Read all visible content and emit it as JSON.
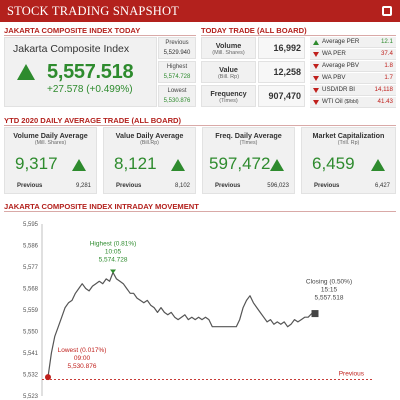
{
  "header": {
    "title": "STOCK TRADING SNAPSHOT"
  },
  "sections": {
    "jci_today": "JAKARTA COMPOSITE INDEX TODAY",
    "trade_today": "TODAY TRADE (ALL BOARD)",
    "ytd": "YTD 2020 DAILY AVERAGE TRADE (ALL BOARD)",
    "intraday": "JAKARTA COMPOSITE INDEX INTRADAY MOVEMENT"
  },
  "jci": {
    "name": "Jakarta Composite Index",
    "value": "5,557.518",
    "change": "+27.578 (+0.499%)",
    "previous_label": "Previous",
    "previous_value": "5,529.940",
    "highest_label": "Highest",
    "highest_value": "5,574.728",
    "lowest_label": "Lowest",
    "lowest_value": "5,530.876"
  },
  "trade": [
    {
      "label": "Volume",
      "sub": "(Mill. Shares)",
      "value": "16,992"
    },
    {
      "label": "Value",
      "sub": "(Bill. Rp)",
      "value": "12,258"
    },
    {
      "label": "Frequency",
      "sub": "(Times)",
      "value": "907,470"
    }
  ],
  "ratios": [
    {
      "label": "Average PER",
      "value": "12.1",
      "direction": "up"
    },
    {
      "label": "WA PER",
      "value": "37.4",
      "direction": "down"
    },
    {
      "label": "Average PBV",
      "value": "1.8",
      "direction": "down"
    },
    {
      "label": "WA PBV",
      "value": "1.7",
      "direction": "down"
    },
    {
      "label": "USD/IDR BI",
      "value": "14,118",
      "direction": "down"
    },
    {
      "label": "WTI Oil",
      "label_sub": "($/bbl)",
      "value": "41.43",
      "direction": "down"
    }
  ],
  "ytd": [
    {
      "title": "Volume Daily Average",
      "sub": "(Mill. Shares)",
      "value": "9,317",
      "prev_label": "Previous",
      "prev_value": "9,281"
    },
    {
      "title": "Value Daily Average",
      "sub": "(Bill.Rp)",
      "value": "8,121",
      "prev_label": "Previous",
      "prev_value": "8,102"
    },
    {
      "title": "Freq. Daily Average",
      "sub": "(Times)",
      "value": "597,472",
      "prev_label": "Previous",
      "prev_value": "596,023"
    },
    {
      "title": "Market Capitalization",
      "sub": "(Trill. Rp)",
      "value": "6,459",
      "prev_label": "Previous",
      "prev_value": "6,427"
    }
  ],
  "colors": {
    "brand": "#b3211d",
    "up": "#2e8b2e",
    "down": "#c0201c",
    "line": "#555555"
  },
  "chart_data": {
    "type": "line",
    "title": "JAKARTA COMPOSITE INDEX INTRADAY MOVEMENT",
    "xlabel": "",
    "ylabel": "",
    "ylim": [
      5523,
      5595
    ],
    "yticks": [
      "5,595",
      "5,586",
      "5,577",
      "5,568",
      "5,559",
      "5,550",
      "5,541",
      "5,532",
      "5,523"
    ],
    "ytick_values": [
      5595,
      5586,
      5577,
      5568,
      5559,
      5550,
      5541,
      5532,
      5523
    ],
    "grid": false,
    "series": [
      {
        "values": [
          5530.9,
          5541,
          5548,
          5552,
          5556,
          5560,
          5562,
          5563,
          5566,
          5568,
          5570,
          5568,
          5567,
          5569,
          5570,
          5571,
          5570,
          5572,
          5571,
          5574.7,
          5572,
          5571,
          5570,
          5568,
          5566,
          5566,
          5564,
          5563,
          5562,
          5563,
          5561,
          5560,
          5558,
          5560,
          5558,
          5557,
          5558,
          5556,
          5555,
          5556,
          5557,
          5555,
          5556,
          5555,
          5556,
          5555,
          5556,
          5555,
          5552,
          5552,
          5552,
          5552,
          5552,
          5552,
          5552,
          5552,
          5555,
          5560,
          5563,
          5565,
          5562,
          5560,
          5558,
          5556,
          5554,
          5555,
          5553,
          5554,
          5553,
          5554,
          5552,
          5553,
          5555,
          5554,
          5555,
          5556,
          5556,
          5557.5,
          5557.5
        ]
      }
    ],
    "previous_value": 5529.94,
    "previous_label": "Previous",
    "annotations": [
      {
        "label": "Highest (0.81%)",
        "time": "10:05",
        "value": "5,574.728"
      },
      {
        "label": "Lowest (0.017%)",
        "time": "09:00",
        "value": "5,530.876"
      },
      {
        "label": "Closing (0.50%)",
        "time": "15:15",
        "value": "5,557.518"
      }
    ]
  }
}
